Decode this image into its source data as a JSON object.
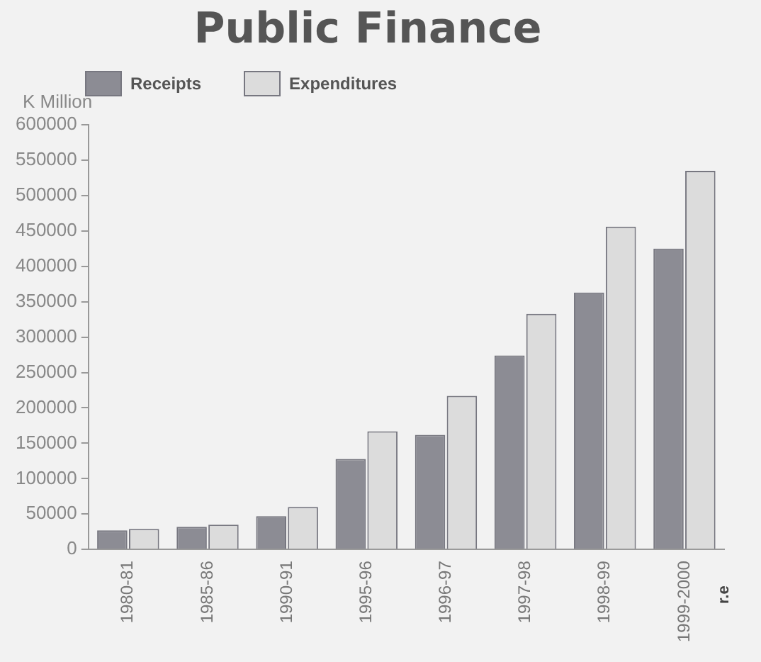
{
  "chart_data": {
    "type": "bar",
    "title": "Public Finance",
    "ylabel": "K Million",
    "categories": [
      "1980-81",
      "1985-86",
      "1990-91",
      "1995-96",
      "1996-97",
      "1997-98",
      "1998-99",
      "1999-2000"
    ],
    "series": [
      {
        "name": "Receipts",
        "color": "#8c8c94",
        "values": [
          27000,
          32000,
          47000,
          128000,
          162000,
          274000,
          363000,
          425000
        ]
      },
      {
        "name": "Expenditures",
        "color": "#dcdcdc",
        "values": [
          29000,
          35000,
          60000,
          167000,
          217000,
          333000,
          456000,
          535000
        ]
      }
    ],
    "ylim": [
      0,
      600000
    ],
    "yticks": [
      0,
      50000,
      100000,
      150000,
      200000,
      250000,
      300000,
      350000,
      400000,
      450000,
      500000,
      550000,
      600000
    ],
    "grid": false,
    "legend": "top left",
    "annotations": [
      "r.e"
    ]
  }
}
